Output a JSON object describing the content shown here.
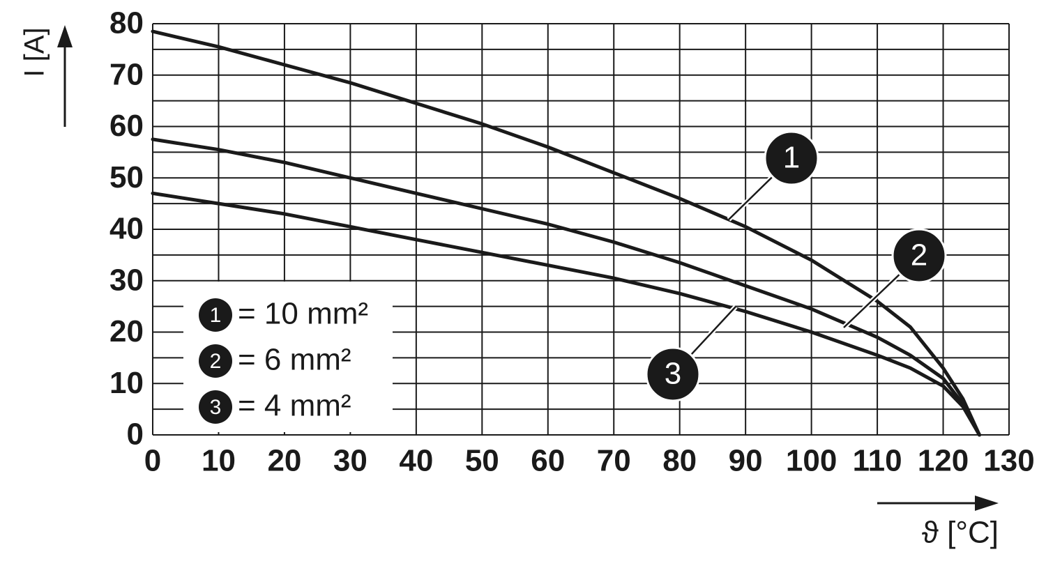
{
  "chart_data": {
    "type": "line",
    "y_label": "I [A]",
    "x_label": "ϑ [°C]",
    "x": [
      0,
      10,
      20,
      30,
      40,
      50,
      60,
      70,
      80,
      90,
      100,
      110,
      115,
      120,
      123,
      125.5
    ],
    "series": [
      {
        "marker": "1",
        "name": "= 10 mm²",
        "color": "#1a1a1a",
        "values": [
          78.5,
          75.5,
          72,
          68.5,
          64.5,
          60.5,
          56,
          51,
          46,
          40.5,
          34,
          26,
          21,
          13,
          7,
          0
        ]
      },
      {
        "marker": "2",
        "name": "= 6 mm²",
        "color": "#1a1a1a",
        "values": [
          57.5,
          55.5,
          53,
          50,
          47,
          44,
          41,
          37.5,
          33.5,
          29,
          24.5,
          19,
          15.5,
          11,
          6,
          0
        ]
      },
      {
        "marker": "3",
        "name": "= 4 mm²",
        "color": "#1a1a1a",
        "values": [
          47,
          45,
          43,
          40.5,
          38,
          35.5,
          33,
          30.5,
          27.5,
          24,
          20,
          15.5,
          13,
          9.5,
          5.5,
          0
        ]
      }
    ],
    "xlim": [
      0,
      130
    ],
    "ylim": [
      0,
      80
    ],
    "xticks": [
      0,
      10,
      20,
      30,
      40,
      50,
      60,
      70,
      80,
      90,
      100,
      110,
      120,
      130
    ],
    "yticks": [
      0,
      10,
      20,
      30,
      40,
      50,
      60,
      70,
      80
    ],
    "y_minor_grid": [
      5,
      15,
      25,
      35,
      45,
      55,
      65,
      75
    ],
    "grid": true
  }
}
